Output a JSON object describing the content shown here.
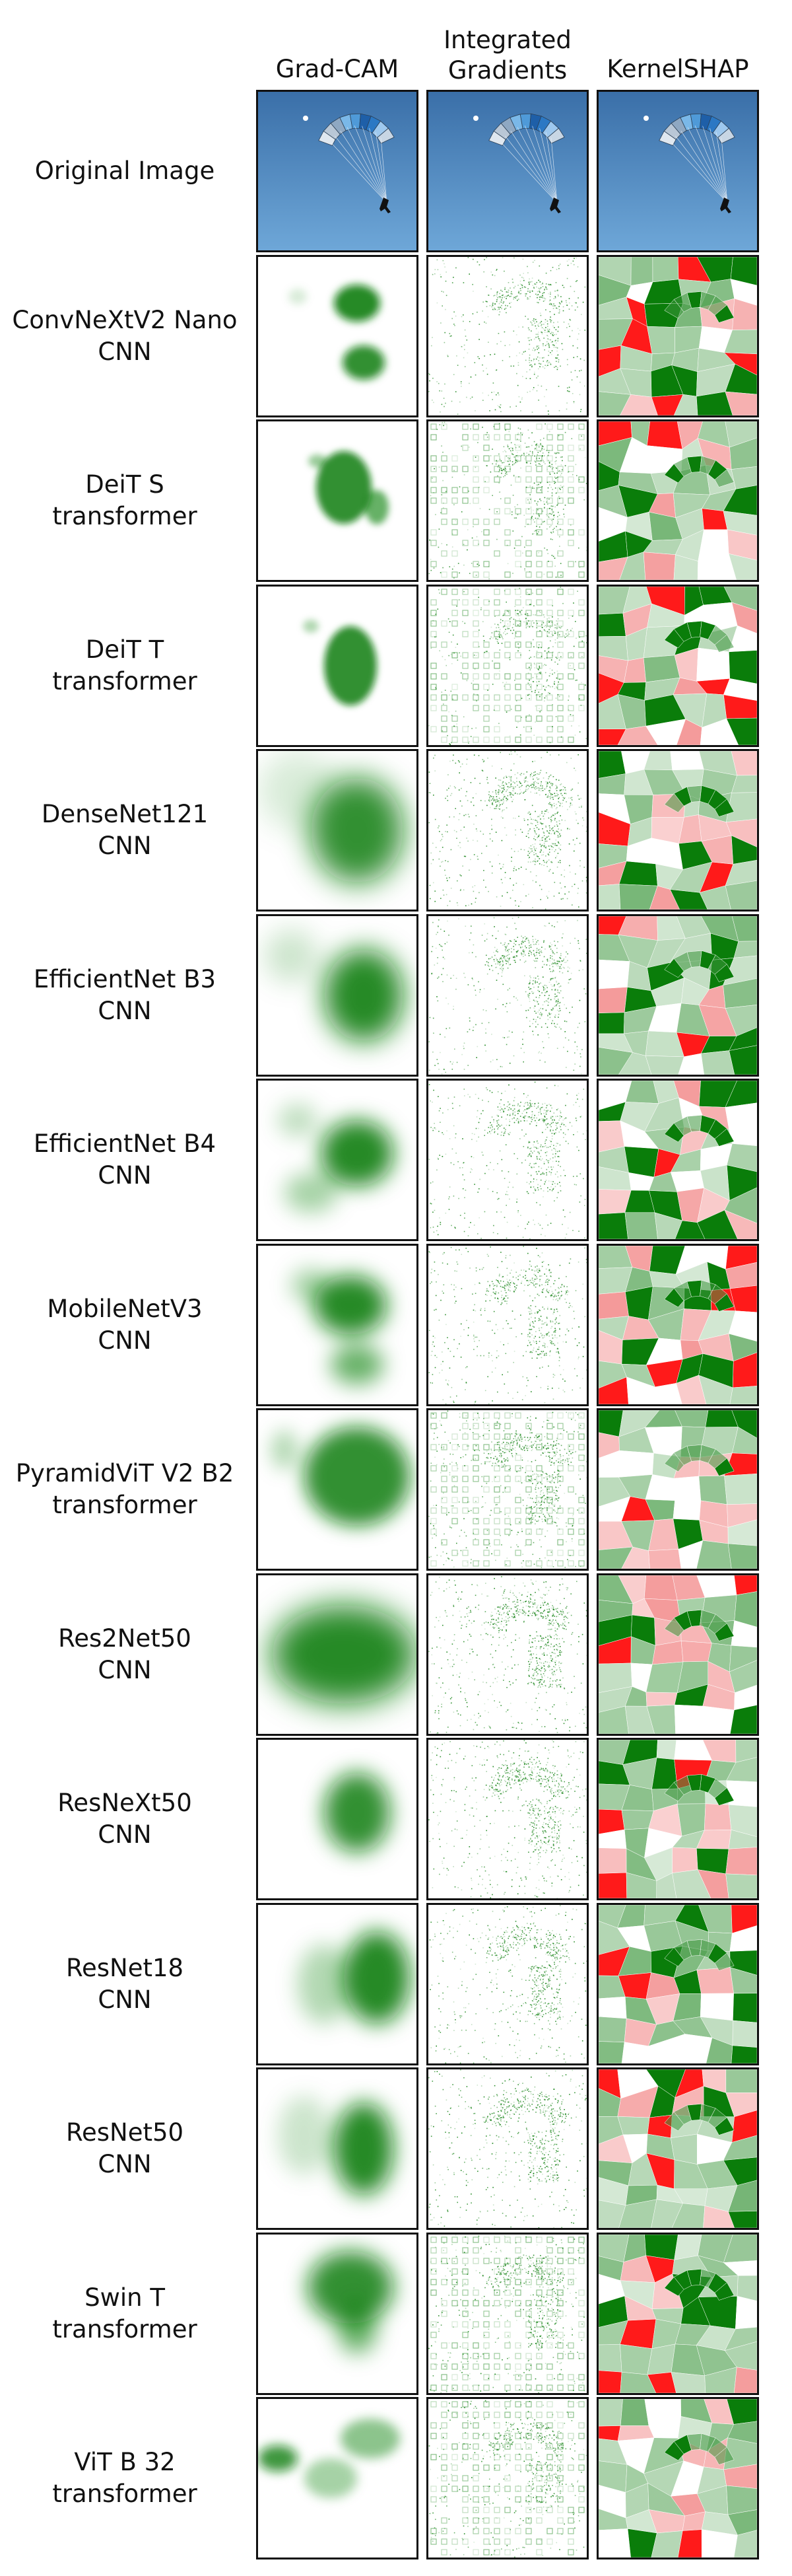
{
  "columns": [
    "Grad-CAM",
    "Integrated\nGradients",
    "KernelSHAP"
  ],
  "original_label": "Original Image",
  "rows": [
    {
      "name": "ConvNeXtV2 Nano",
      "type": "CNN"
    },
    {
      "name": "DeiT S",
      "type": "transformer"
    },
    {
      "name": "DeiT T",
      "type": "transformer"
    },
    {
      "name": "DenseNet121",
      "type": "CNN"
    },
    {
      "name": "EfficientNet B3",
      "type": "CNN"
    },
    {
      "name": "EfficientNet B4",
      "type": "CNN"
    },
    {
      "name": "MobileNetV3",
      "type": "CNN"
    },
    {
      "name": "PyramidViT V2 B2",
      "type": "transformer"
    },
    {
      "name": "Res2Net50",
      "type": "CNN"
    },
    {
      "name": "ResNeXt50",
      "type": "CNN"
    },
    {
      "name": "ResNet18",
      "type": "CNN"
    },
    {
      "name": "ResNet50",
      "type": "CNN"
    },
    {
      "name": "Swin T",
      "type": "transformer"
    },
    {
      "name": "ViT B 32",
      "type": "transformer"
    }
  ],
  "colors": {
    "positive": "#0a7d0a",
    "negative": "#ff1a1a",
    "sky_top": "#3a6fa8",
    "sky_bottom": "#6ea7d8",
    "canopy_light": "#7ab8e8",
    "canopy_dark": "#1e5fa8"
  }
}
